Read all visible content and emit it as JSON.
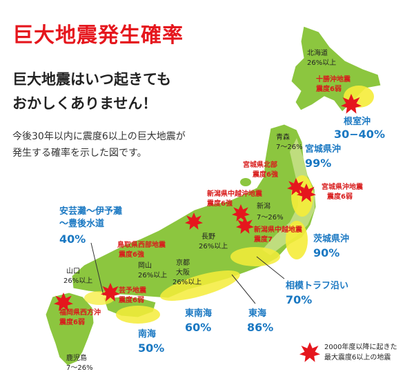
{
  "title": "巨大地震発生確率",
  "subtitle_line1": "巨大地震はいつ起きても",
  "subtitle_line2": "おかしくありません！",
  "description_line1": "今後30年以内に震度6以上の巨大地震が",
  "description_line2": "発生する確率を示した図です。",
  "colors": {
    "land": "#8cc63f",
    "land_light": "#c8e08a",
    "zone": "#f5ec3a",
    "quake": "#e5161d",
    "probability_text": "#1a78c2",
    "title": "#e5161d"
  },
  "regions": {
    "hokkaido": {
      "name": "北海道",
      "prob": "26%以上"
    },
    "aomori": {
      "name": "青森",
      "prob": "7〜26%"
    },
    "niigata": {
      "name": "新潟",
      "prob": "7〜26%"
    },
    "nagano": {
      "name": "長野",
      "prob": "26%以上"
    },
    "okayama": {
      "name": "岡山",
      "prob": "26%以上"
    },
    "kyoto_osaka": {
      "name1": "京都",
      "name2": "大阪",
      "prob": "26%以上"
    },
    "yamaguchi": {
      "name": "山口",
      "prob": "26%以上"
    },
    "kagoshima": {
      "name": "鹿児島",
      "prob": "7〜26%"
    }
  },
  "earthquakes": {
    "tokachi": {
      "name": "十勝沖地震",
      "intensity": "震度6弱"
    },
    "miyagi_north": {
      "name": "宮城県北部",
      "intensity": "震度6強"
    },
    "miyagi_offshore": {
      "name": "宮城県沖地震",
      "intensity": "震度6弱"
    },
    "niigata_chuetsu_oki": {
      "name": "新潟県中越沖地震",
      "intensity": "震度6強"
    },
    "niigata_chuetsu": {
      "name": "新潟県中越地震",
      "intensity": "震度7"
    },
    "tottori_west": {
      "name": "鳥取県西部地震",
      "intensity": "震度6強"
    },
    "geiyo": {
      "name": "芸予地震",
      "intensity": "震度6弱"
    },
    "fukuoka_west": {
      "name": "福岡県西方沖",
      "intensity": "震度6弱"
    }
  },
  "zones": {
    "nemuro": {
      "name": "根室沖",
      "prob": "30−40%"
    },
    "miyagi": {
      "name": "宮城県沖",
      "prob": "99%"
    },
    "ibaraki": {
      "name": "茨城県沖",
      "prob": "90%"
    },
    "sagami": {
      "name": "相模トラフ沿い",
      "prob": "70%"
    },
    "tokai": {
      "name": "東海",
      "prob": "86%"
    },
    "tonankai": {
      "name": "東南海",
      "prob": "60%"
    },
    "nankai": {
      "name": "南海",
      "prob": "50%"
    },
    "akinada": {
      "name1": "安芸灘〜伊予灘",
      "name2": "〜豊後水道",
      "prob": "40%"
    }
  },
  "legend": {
    "line1": "2000年度以降に起きた",
    "line2": "最大震度6以上の地震"
  }
}
